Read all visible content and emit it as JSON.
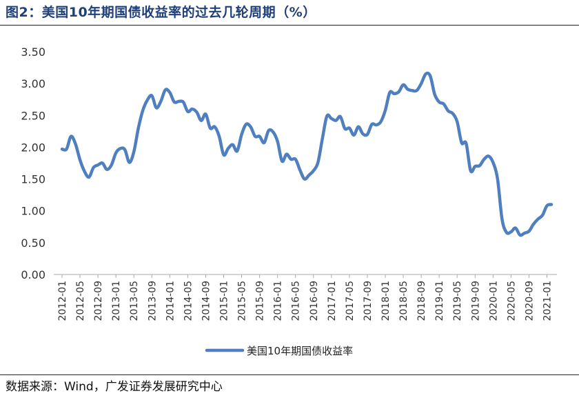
{
  "figure": {
    "title": "图2：美国10年期国债收益率的过去几轮周期（%）",
    "source": "数据来源：Wind，广发证券发展研究中心"
  },
  "colors": {
    "series": "#4f7fbf",
    "title": "#1f3f7a",
    "axis": "#aaaaaa"
  },
  "chart_data": {
    "type": "line",
    "title": "图2：美国10年期国债收益率的过去几轮周期（%）",
    "xlabel": "",
    "ylabel": "",
    "ylim": [
      0,
      3.5
    ],
    "yticks": [
      "0.00",
      "0.50",
      "1.00",
      "1.50",
      "2.00",
      "2.50",
      "3.00",
      "3.50"
    ],
    "x_start": "2012-01",
    "x_end": "2021-02",
    "xticks": [
      "2012-01",
      "2012-05",
      "2012-09",
      "2013-01",
      "2013-05",
      "2013-09",
      "2014-01",
      "2014-05",
      "2014-09",
      "2015-01",
      "2015-05",
      "2015-09",
      "2016-01",
      "2016-05",
      "2016-09",
      "2017-01",
      "2017-05",
      "2017-09",
      "2018-01",
      "2018-05",
      "2018-09",
      "2019-01",
      "2019-05",
      "2019-09",
      "2020-01",
      "2020-05",
      "2020-09",
      "2021-01"
    ],
    "grid": false,
    "legend_position": "bottom-center",
    "series": [
      {
        "name": "美国10年期国债收益率",
        "x": [
          "2012-01",
          "2012-02",
          "2012-03",
          "2012-04",
          "2012-05",
          "2012-06",
          "2012-07",
          "2012-08",
          "2012-09",
          "2012-10",
          "2012-11",
          "2012-12",
          "2013-01",
          "2013-02",
          "2013-03",
          "2013-04",
          "2013-05",
          "2013-06",
          "2013-07",
          "2013-08",
          "2013-09",
          "2013-10",
          "2013-11",
          "2013-12",
          "2014-01",
          "2014-02",
          "2014-03",
          "2014-04",
          "2014-05",
          "2014-06",
          "2014-07",
          "2014-08",
          "2014-09",
          "2014-10",
          "2014-11",
          "2014-12",
          "2015-01",
          "2015-02",
          "2015-03",
          "2015-04",
          "2015-05",
          "2015-06",
          "2015-07",
          "2015-08",
          "2015-09",
          "2015-10",
          "2015-11",
          "2015-12",
          "2016-01",
          "2016-02",
          "2016-03",
          "2016-04",
          "2016-05",
          "2016-06",
          "2016-07",
          "2016-08",
          "2016-09",
          "2016-10",
          "2016-11",
          "2016-12",
          "2017-01",
          "2017-02",
          "2017-03",
          "2017-04",
          "2017-05",
          "2017-06",
          "2017-07",
          "2017-08",
          "2017-09",
          "2017-10",
          "2017-11",
          "2017-12",
          "2018-01",
          "2018-02",
          "2018-03",
          "2018-04",
          "2018-05",
          "2018-06",
          "2018-07",
          "2018-08",
          "2018-09",
          "2018-10",
          "2018-11",
          "2018-12",
          "2019-01",
          "2019-02",
          "2019-03",
          "2019-04",
          "2019-05",
          "2019-06",
          "2019-07",
          "2019-08",
          "2019-09",
          "2019-10",
          "2019-11",
          "2019-12",
          "2020-01",
          "2020-02",
          "2020-03",
          "2020-04",
          "2020-05",
          "2020-06",
          "2020-07",
          "2020-08",
          "2020-09",
          "2020-10",
          "2020-11",
          "2020-12",
          "2021-01",
          "2021-02"
        ],
        "values": [
          1.97,
          1.97,
          2.17,
          2.05,
          1.8,
          1.62,
          1.53,
          1.68,
          1.72,
          1.75,
          1.65,
          1.72,
          1.91,
          1.98,
          1.96,
          1.76,
          1.93,
          2.3,
          2.58,
          2.74,
          2.81,
          2.62,
          2.72,
          2.9,
          2.86,
          2.71,
          2.72,
          2.71,
          2.56,
          2.6,
          2.55,
          2.42,
          2.52,
          2.3,
          2.32,
          2.17,
          1.88,
          1.98,
          2.04,
          1.94,
          2.2,
          2.36,
          2.32,
          2.17,
          2.17,
          2.07,
          2.26,
          2.24,
          2.09,
          1.78,
          1.89,
          1.81,
          1.81,
          1.64,
          1.5,
          1.56,
          1.63,
          1.76,
          2.14,
          2.49,
          2.45,
          2.42,
          2.48,
          2.29,
          2.3,
          2.19,
          2.32,
          2.21,
          2.2,
          2.36,
          2.35,
          2.4,
          2.58,
          2.86,
          2.84,
          2.87,
          2.98,
          2.91,
          2.89,
          2.89,
          3.0,
          3.15,
          3.12,
          2.83,
          2.71,
          2.68,
          2.57,
          2.53,
          2.4,
          2.07,
          2.06,
          1.63,
          1.7,
          1.71,
          1.81,
          1.86,
          1.76,
          1.5,
          0.87,
          0.66,
          0.67,
          0.73,
          0.62,
          0.65,
          0.68,
          0.79,
          0.87,
          0.93,
          1.08,
          1.1
        ]
      }
    ]
  }
}
